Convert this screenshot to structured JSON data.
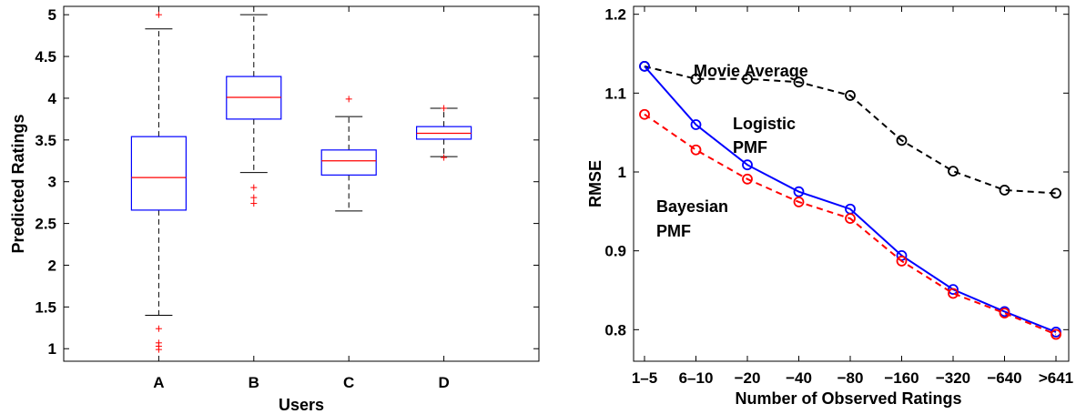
{
  "chart_data": [
    {
      "type": "box",
      "title": "",
      "xlabel": "Users",
      "ylabel": "Predicted Ratings",
      "ylim": [
        0.85,
        5.1
      ],
      "yticks": [
        "1",
        "1.5",
        "2",
        "2.5",
        "3",
        "3.5",
        "4",
        "4.5",
        "5"
      ],
      "categories": [
        "A",
        "B",
        "C",
        "D"
      ],
      "box_color": "#0000ff",
      "median_color": "#ff0000",
      "outlier_color": "#ff0000",
      "boxes": [
        {
          "category": "A",
          "whisker_low": 1.4,
          "q1": 2.66,
          "median": 3.05,
          "q3": 3.54,
          "whisker_high": 4.83,
          "outliers": [
            1.24,
            1.07,
            1.03,
            0.99,
            5.0
          ]
        },
        {
          "category": "B",
          "whisker_low": 3.11,
          "q1": 3.75,
          "median": 4.01,
          "q3": 4.26,
          "whisker_high": 5.0,
          "outliers": [
            2.93,
            2.81,
            2.74
          ]
        },
        {
          "category": "C",
          "whisker_low": 2.65,
          "q1": 3.08,
          "median": 3.25,
          "q3": 3.38,
          "whisker_high": 3.78,
          "outliers": [
            3.99
          ]
        },
        {
          "category": "D",
          "whisker_low": 3.3,
          "q1": 3.51,
          "median": 3.58,
          "q3": 3.66,
          "whisker_high": 3.88,
          "outliers": [
            3.88,
            3.29
          ]
        }
      ]
    },
    {
      "type": "line",
      "title": "",
      "xlabel": "Number of Observed Ratings",
      "ylabel": "RMSE",
      "ylim": [
        0.76,
        1.21
      ],
      "yticks": [
        "0.8",
        "0.9",
        "1",
        "1.1",
        "1.2"
      ],
      "categories": [
        "1–5",
        "6–10",
        "−20",
        "−40",
        "−80",
        "−160",
        "−320",
        "−640",
        ">641"
      ],
      "series": [
        {
          "name": "Movie Average",
          "color": "#000000",
          "dash": "dashed",
          "values": [
            1.134,
            1.118,
            1.118,
            1.114,
            1.097,
            1.04,
            1.001,
            0.977,
            0.973
          ]
        },
        {
          "name": "Logistic PMF",
          "color": "#0000ff",
          "dash": "solid",
          "values": [
            1.134,
            1.06,
            1.009,
            0.975,
            0.953,
            0.894,
            0.851,
            0.823,
            0.797
          ]
        },
        {
          "name": "Bayesian PMF",
          "color": "#ff0000",
          "dash": "dashed",
          "values": [
            1.073,
            1.028,
            0.991,
            0.962,
            0.941,
            0.887,
            0.846,
            0.821,
            0.794
          ]
        }
      ],
      "annotations": [
        {
          "line1": "Movie Average",
          "line2": "",
          "series": "Movie Average"
        },
        {
          "line1": "Logistic",
          "line2": "PMF",
          "series": "Logistic PMF"
        },
        {
          "line1": "Bayesian",
          "line2": "PMF",
          "series": "Bayesian PMF"
        }
      ]
    }
  ]
}
